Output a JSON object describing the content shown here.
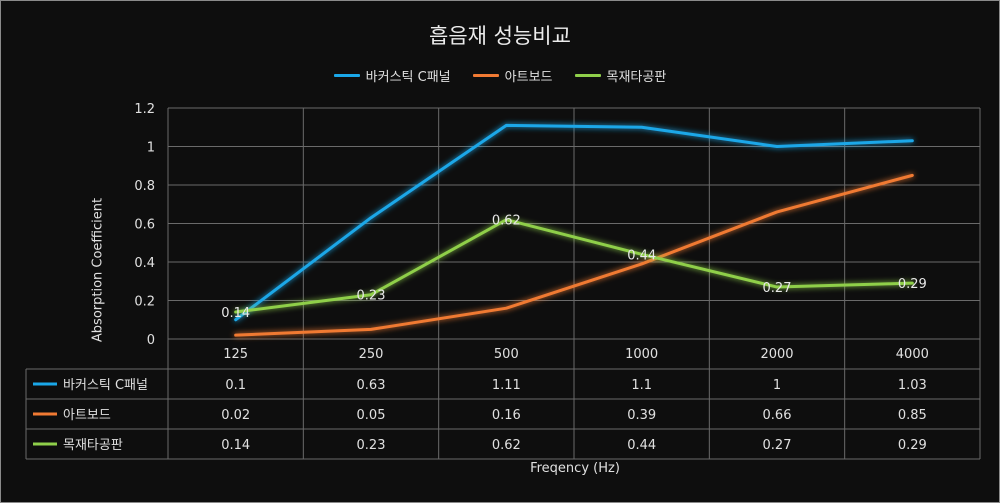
{
  "chart_data": {
    "type": "line",
    "title": "흡음재 성능비교",
    "xlabel": "Freqency (Hz)",
    "ylabel": "Absorption Coefficient",
    "categories": [
      "125",
      "250",
      "500",
      "1000",
      "2000",
      "4000"
    ],
    "ylim": [
      0,
      1.2
    ],
    "yticks": [
      "0",
      "0.2",
      "0.4",
      "0.6",
      "0.8",
      "1",
      "1.2"
    ],
    "grid": true,
    "legend_position": "top",
    "data_table": true,
    "series": [
      {
        "name": "바커스틱 C패널",
        "color": "#1aa7e8",
        "values": [
          0.1,
          0.63,
          1.11,
          1.1,
          1,
          1.03
        ],
        "value_labels": [
          "0.1",
          "0.63",
          "1.11",
          "1.1",
          "1",
          "1.03"
        ],
        "show_data_labels": false
      },
      {
        "name": "아트보드",
        "color": "#f07a33",
        "values": [
          0.02,
          0.05,
          0.16,
          0.39,
          0.66,
          0.85
        ],
        "value_labels": [
          "0.02",
          "0.05",
          "0.16",
          "0.39",
          "0.66",
          "0.85"
        ],
        "show_data_labels": false
      },
      {
        "name": "목재타공판",
        "color": "#8fcf4a",
        "values": [
          0.14,
          0.23,
          0.62,
          0.44,
          0.27,
          0.29
        ],
        "value_labels": [
          "0.14",
          "0.23",
          "0.62",
          "0.44",
          "0.27",
          "0.29"
        ],
        "show_data_labels": true
      }
    ]
  }
}
